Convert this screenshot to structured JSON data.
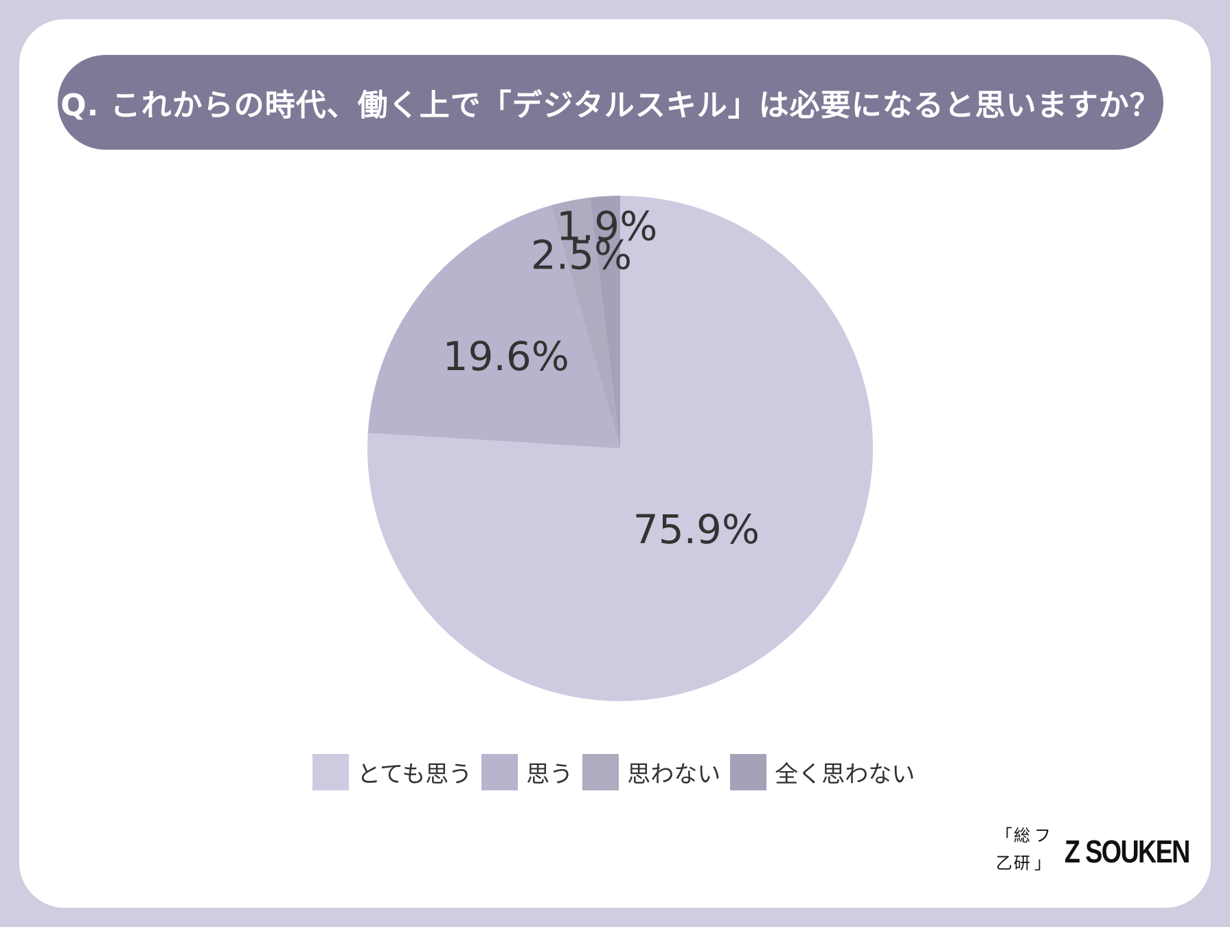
{
  "title": "Q. これからの時代、働く上で「デジタルスキル」は必要になると思いますか？",
  "chart_data": {
    "type": "pie",
    "start": "12 o'clock, clockwise",
    "slices": [
      {
        "label": "とても思う",
        "value": 75.9,
        "value_label": "75.9%",
        "color": "#cccbe0"
      },
      {
        "label": "思う",
        "value": 19.6,
        "value_label": "19.6%",
        "color": "#b6b5cd"
      },
      {
        "label": "思わない",
        "value": 2.5,
        "value_label": "2.5%",
        "color": "#aeacc0"
      },
      {
        "label": "全く思わない",
        "value": 1.9,
        "value_label": "1.9%",
        "color": "#a3a2b9"
      }
    ],
    "legend_position": "bottom"
  },
  "logo": {
    "mark_chars": [
      "「",
      "総",
      "フ",
      "乙",
      "研",
      "」"
    ],
    "text": "Z SOUKEN"
  }
}
